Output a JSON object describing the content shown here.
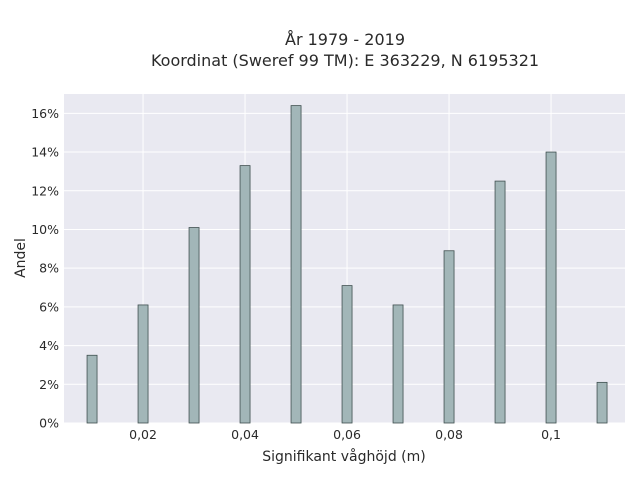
{
  "chart_data": {
    "type": "bar",
    "title_line1": "År 1979 - 2019",
    "title_line2": "Koordinat (Sweref 99 TM): E 363229, N 6195321",
    "xlabel": "Signifikant våghöjd (m)",
    "ylabel": "Andel",
    "x": [
      0.01,
      0.02,
      0.03,
      0.04,
      0.05,
      0.06,
      0.07,
      0.08,
      0.09,
      0.1,
      0.11
    ],
    "values": [
      3.5,
      6.1,
      10.1,
      13.3,
      16.4,
      7.1,
      6.1,
      8.9,
      12.5,
      14.0,
      2.1
    ],
    "xlim": [
      0.0045,
      0.1145
    ],
    "ylim": [
      0,
      17
    ],
    "x_ticks": [
      {
        "value": 0.02,
        "label": "0,02"
      },
      {
        "value": 0.04,
        "label": "0,04"
      },
      {
        "value": 0.06,
        "label": "0,06"
      },
      {
        "value": 0.08,
        "label": "0,08"
      },
      {
        "value": 0.1,
        "label": "0,1"
      }
    ],
    "y_ticks": [
      {
        "value": 0,
        "label": "0%"
      },
      {
        "value": 2,
        "label": "2%"
      },
      {
        "value": 4,
        "label": "4%"
      },
      {
        "value": 6,
        "label": "6%"
      },
      {
        "value": 8,
        "label": "8%"
      },
      {
        "value": 10,
        "label": "10%"
      },
      {
        "value": 12,
        "label": "12%"
      },
      {
        "value": 14,
        "label": "14%"
      },
      {
        "value": 16,
        "label": "16%"
      }
    ],
    "grid": true,
    "bar_color": "#a2b6b8",
    "bar_edge_color": "#3f4f4f",
    "plot_background": "#e9e9f1",
    "grid_color": "#ffffff"
  }
}
